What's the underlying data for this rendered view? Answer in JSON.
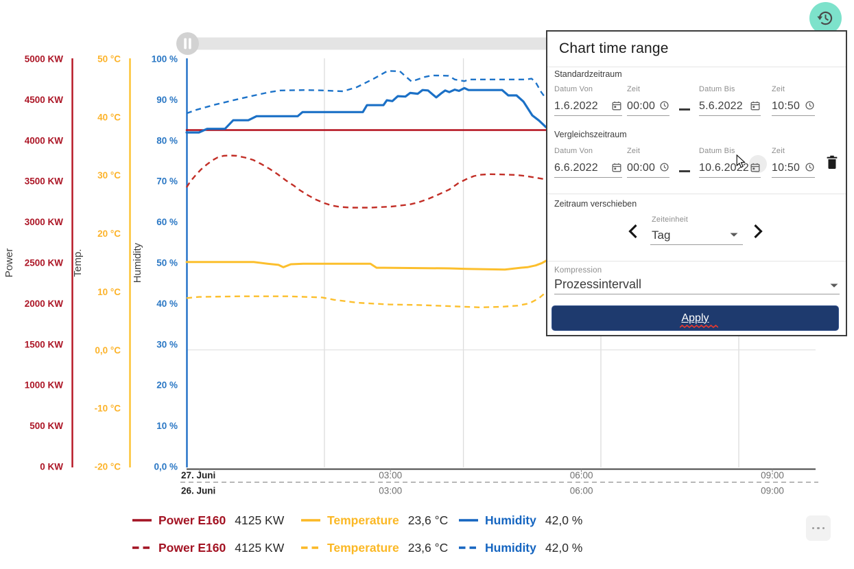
{
  "chart_data": {
    "type": "line",
    "x_axis": {
      "ticks": [
        {
          "h": 0,
          "label": "27. Juni",
          "comparison_label": "26. Juni",
          "date": true
        },
        {
          "h": 3,
          "label": "03:00",
          "comparison_label": "03:00"
        },
        {
          "h": 6,
          "label": "06:00",
          "comparison_label": "06:00"
        },
        {
          "h": 9,
          "label": "09:00",
          "comparison_label": "09:00"
        }
      ],
      "gridline_hours": [
        1.963,
        4.146,
        6.306,
        8.472
      ]
    },
    "y_axes": [
      {
        "id": "power",
        "title": "Power",
        "unit": "KW",
        "min": 0,
        "max": 5000,
        "axis_color": "#b5121f",
        "text_color": "#ac1626",
        "ticks": [
          {
            "v": 5000,
            "label": "5000 KW"
          },
          {
            "v": 4500,
            "label": "4500 KW"
          },
          {
            "v": 4000,
            "label": "4000 KW"
          },
          {
            "v": 3500,
            "label": "3500 KW"
          },
          {
            "v": 3000,
            "label": "3000 KW"
          },
          {
            "v": 2500,
            "label": "2500 KW"
          },
          {
            "v": 2000,
            "label": "2000 KW"
          },
          {
            "v": 1500,
            "label": "1500 KW"
          },
          {
            "v": 1000,
            "label": "1000 KW"
          },
          {
            "v": 500,
            "label": "500 KW"
          },
          {
            "v": 0,
            "label": "0 KW"
          }
        ]
      },
      {
        "id": "temp",
        "title": "Temp.",
        "unit": "°C",
        "min": -20,
        "max": 50,
        "axis_color": "#fcc12f",
        "text_color": "#fcb32a",
        "ticks": [
          {
            "v": 50,
            "label": "50 °C"
          },
          {
            "v": 40,
            "label": "40 °C"
          },
          {
            "v": 30,
            "label": "30 °C"
          },
          {
            "v": 20,
            "label": "20 °C"
          },
          {
            "v": 10,
            "label": "10 °C"
          },
          {
            "v": 0,
            "label": "0,0 °C"
          },
          {
            "v": -10,
            "label": "-10 °C"
          },
          {
            "v": -20,
            "label": "-20 °C"
          }
        ]
      },
      {
        "id": "humidity",
        "title": "Humidity",
        "unit": "%",
        "min": 0,
        "max": 100,
        "axis_color": "#1e6ec6",
        "text_color": "#2a77c4",
        "ticks": [
          {
            "v": 100,
            "label": "100 %"
          },
          {
            "v": 90,
            "label": "90 %"
          },
          {
            "v": 80,
            "label": "80 %"
          },
          {
            "v": 70,
            "label": "70 %"
          },
          {
            "v": 60,
            "label": "60 %"
          },
          {
            "v": 50,
            "label": "50 %"
          },
          {
            "v": 40,
            "label": "40 %"
          },
          {
            "v": 30,
            "label": "30 %"
          },
          {
            "v": 20,
            "label": "20 %"
          },
          {
            "v": 10,
            "label": "10 %"
          },
          {
            "v": 0,
            "label": "0,0 %"
          }
        ]
      }
    ],
    "zero_line": {
      "axis": "temp",
      "value": 0
    },
    "series": [
      {
        "id": "power-current",
        "name": "Power E160",
        "axis": "power",
        "style": "solid",
        "color": "#b30f1c",
        "width": 2.6,
        "points": [
          [
            -0.203,
            4125
          ],
          [
            5.444,
            4125
          ]
        ]
      },
      {
        "id": "power-comparison",
        "name": "Power E160",
        "axis": "power",
        "style": "dashed",
        "color": "#c22e26",
        "width": 2.4,
        "points": [
          [
            -0.203,
            3422
          ],
          [
            -0.149,
            3489
          ],
          [
            -0.063,
            3569
          ],
          [
            0.024,
            3641
          ],
          [
            0.11,
            3699
          ],
          [
            0.196,
            3750
          ],
          [
            0.282,
            3788
          ],
          [
            0.379,
            3809
          ],
          [
            0.476,
            3813
          ],
          [
            0.584,
            3809
          ],
          [
            0.713,
            3788
          ],
          [
            0.843,
            3758
          ],
          [
            0.972,
            3708
          ],
          [
            1.101,
            3649
          ],
          [
            1.231,
            3582
          ],
          [
            1.36,
            3506
          ],
          [
            1.489,
            3439
          ],
          [
            1.575,
            3388
          ],
          [
            1.705,
            3325
          ],
          [
            1.834,
            3270
          ],
          [
            1.963,
            3228
          ],
          [
            2.082,
            3199
          ],
          [
            2.211,
            3182
          ],
          [
            2.384,
            3173
          ],
          [
            2.685,
            3173
          ],
          [
            3.009,
            3186
          ],
          [
            3.3,
            3211
          ],
          [
            3.45,
            3241
          ],
          [
            3.601,
            3283
          ],
          [
            3.752,
            3333
          ],
          [
            3.925,
            3396
          ],
          [
            4.065,
            3472
          ],
          [
            4.183,
            3519
          ],
          [
            4.312,
            3561
          ],
          [
            4.42,
            3577
          ],
          [
            4.55,
            3583
          ],
          [
            4.69,
            3582
          ],
          [
            4.959,
            3575
          ],
          [
            5.131,
            3561
          ],
          [
            5.282,
            3540
          ],
          [
            5.444,
            3519
          ]
        ]
      },
      {
        "id": "temp-current",
        "name": "Temperature",
        "axis": "temp",
        "style": "solid",
        "color": "#fcbf2d",
        "width": 3,
        "points": [
          [
            -0.203,
            15.1
          ],
          [
            0.853,
            15.1
          ],
          [
            1.069,
            14.8
          ],
          [
            1.241,
            14.6
          ],
          [
            1.317,
            14.2
          ],
          [
            1.435,
            14.7
          ],
          [
            1.629,
            14.8
          ],
          [
            2.685,
            14.8
          ],
          [
            2.782,
            14.1
          ],
          [
            2.901,
            14.1
          ],
          [
            3.925,
            14.0
          ],
          [
            4.194,
            13.9
          ],
          [
            4.797,
            13.8
          ],
          [
            5.045,
            14.1
          ],
          [
            5.153,
            14.2
          ],
          [
            5.282,
            14.5
          ],
          [
            5.379,
            14.9
          ],
          [
            5.444,
            15.3
          ]
        ]
      },
      {
        "id": "temp-comparison",
        "name": "Temperature",
        "axis": "temp",
        "style": "dashed",
        "color": "#fcbf2d",
        "width": 2.4,
        "points": [
          [
            -0.203,
            8.9
          ],
          [
            -0.009,
            9.1
          ],
          [
            0.638,
            9.2
          ],
          [
            1.392,
            9.2
          ],
          [
            1.931,
            9.0
          ],
          [
            2.114,
            8.6
          ],
          [
            2.491,
            8.1
          ],
          [
            2.976,
            7.8
          ],
          [
            3.461,
            7.7
          ],
          [
            3.935,
            7.5
          ],
          [
            4.409,
            7.3
          ],
          [
            4.733,
            7.4
          ],
          [
            5.002,
            7.6
          ],
          [
            5.185,
            8.0
          ],
          [
            5.336,
            8.9
          ],
          [
            5.412,
            9.6
          ],
          [
            5.444,
            9.8
          ]
        ]
      },
      {
        "id": "humidity-current",
        "name": "Humidity",
        "axis": "humidity",
        "style": "solid",
        "color": "#1b70c6",
        "width": 3.2,
        "points": [
          [
            -0.203,
            81.9
          ],
          [
            -0.009,
            81.9
          ],
          [
            0.121,
            82.8
          ],
          [
            0.401,
            82.8
          ],
          [
            0.53,
            84.9
          ],
          [
            0.767,
            84.9
          ],
          [
            0.897,
            85.9
          ],
          [
            1.543,
            85.9
          ],
          [
            1.619,
            86.9
          ],
          [
            2.567,
            86.9
          ],
          [
            2.631,
            88.6
          ],
          [
            2.89,
            88.6
          ],
          [
            2.944,
            89.8
          ],
          [
            3.03,
            89.6
          ],
          [
            3.116,
            90.8
          ],
          [
            3.235,
            90.7
          ],
          [
            3.31,
            91.6
          ],
          [
            3.429,
            91.4
          ],
          [
            3.504,
            92.3
          ],
          [
            3.591,
            92.2
          ],
          [
            3.666,
            91.2
          ],
          [
            3.72,
            90.5
          ],
          [
            3.806,
            91.6
          ],
          [
            3.86,
            92.2
          ],
          [
            3.925,
            91.8
          ],
          [
            4.011,
            92.4
          ],
          [
            4.075,
            92.1
          ],
          [
            4.162,
            92.8
          ],
          [
            4.226,
            92.3
          ],
          [
            4.754,
            92.3
          ],
          [
            4.851,
            91.0
          ],
          [
            4.981,
            91.0
          ],
          [
            5.088,
            89.5
          ],
          [
            5.228,
            86.1
          ],
          [
            5.336,
            84.8
          ],
          [
            5.444,
            83.2
          ]
        ]
      },
      {
        "id": "humidity-comparison",
        "name": "Humidity",
        "axis": "humidity",
        "style": "dashed",
        "color": "#1d73c9",
        "width": 2.4,
        "points": [
          [
            -0.203,
            86.6
          ],
          [
            -0.041,
            87.5
          ],
          [
            0.239,
            88.7
          ],
          [
            0.53,
            89.8
          ],
          [
            0.81,
            90.8
          ],
          [
            1.101,
            91.8
          ],
          [
            1.274,
            92.2
          ],
          [
            1.672,
            92.3
          ],
          [
            1.953,
            92.2
          ],
          [
            2.254,
            92.0
          ],
          [
            2.47,
            93.0
          ],
          [
            2.739,
            95.1
          ],
          [
            2.955,
            97.0
          ],
          [
            3.149,
            96.9
          ],
          [
            3.235,
            95.7
          ],
          [
            3.332,
            94.4
          ],
          [
            3.537,
            95.5
          ],
          [
            3.655,
            95.9
          ],
          [
            3.914,
            95.8
          ],
          [
            4.011,
            94.9
          ],
          [
            4.162,
            94.5
          ],
          [
            4.237,
            94.9
          ],
          [
            4.409,
            94.9
          ],
          [
            5.121,
            94.9
          ],
          [
            5.218,
            95.1
          ],
          [
            5.282,
            94.2
          ],
          [
            5.369,
            91.8
          ],
          [
            5.444,
            90.2
          ]
        ]
      }
    ]
  },
  "legend": {
    "rows": [
      {
        "style": "solid",
        "items": [
          {
            "name": "Power E160",
            "value": "4125 KW",
            "color": "#a31323"
          },
          {
            "name": "Temperature",
            "value": "23,6 °C",
            "color": "#fbb825"
          },
          {
            "name": "Humidity",
            "value": "42,0 %",
            "color": "#1565c0"
          }
        ]
      },
      {
        "style": "dashed",
        "items": [
          {
            "name": "Power E160",
            "value": "4125 KW",
            "color": "#a31323"
          },
          {
            "name": "Temperature",
            "value": "23,6 °C",
            "color": "#fbb825"
          },
          {
            "name": "Humidity",
            "value": "42,0 %",
            "color": "#1565c0"
          }
        ]
      }
    ]
  },
  "dialog": {
    "title": "Chart time range",
    "standard": {
      "label": "Standardzeitraum",
      "date_from": {
        "label": "Datum Von",
        "value": "1.6.2022"
      },
      "time_from": {
        "label": "Zeit",
        "value": "00:00"
      },
      "date_to": {
        "label": "Datum Bis",
        "value": "5.6.2022"
      },
      "time_to": {
        "label": "Zeit",
        "value": "10:50"
      }
    },
    "comparison": {
      "label": "Vergleichszeitraum",
      "date_from": {
        "label": "Datum Von",
        "value": "6.6.2022"
      },
      "time_from": {
        "label": "Zeit",
        "value": "00:00"
      },
      "date_to": {
        "label": "Datum Bis",
        "value": "10.6.2022"
      },
      "time_to": {
        "label": "Zeit",
        "value": "10:50"
      }
    },
    "shift": {
      "label": "Zeitraum verschieben",
      "unit_label": "Zeiteinheit",
      "unit_value": "Tag"
    },
    "compression": {
      "label": "Kompression",
      "value": "Prozessintervall"
    },
    "apply_label": "Apply"
  },
  "colors": {
    "accent_navy": "#1e3a6e",
    "fab_teal": "#7de2cb",
    "scrollbar_grey": "#e4e4e4",
    "spellcheck_red": "#e8392f"
  }
}
